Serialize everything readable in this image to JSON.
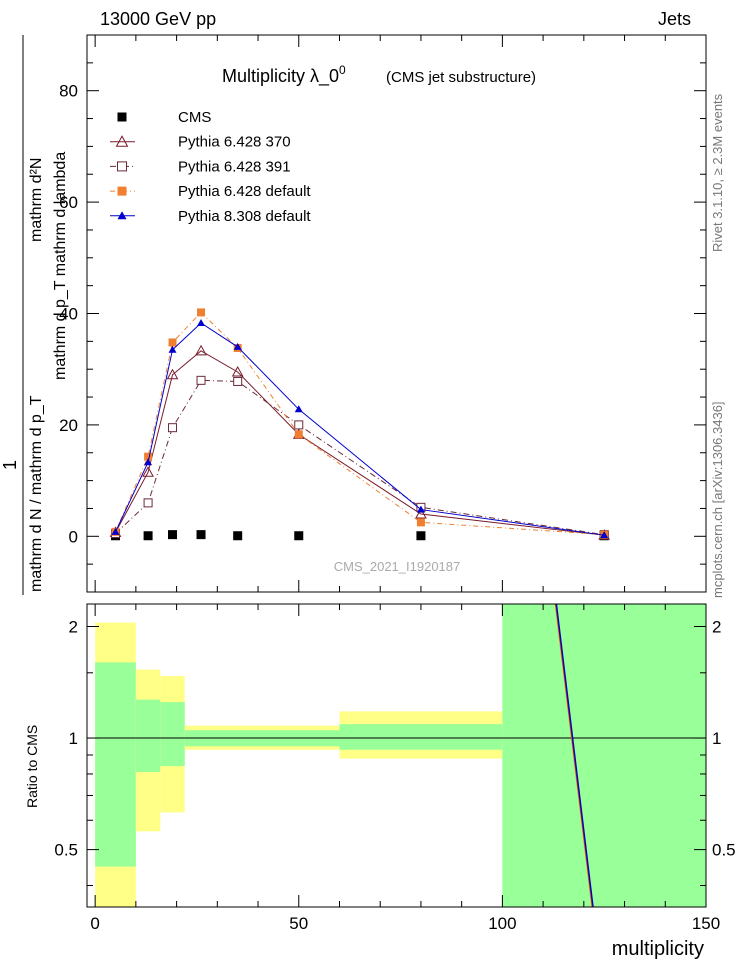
{
  "header": {
    "energy": "13000 GeV pp",
    "category": "Jets"
  },
  "chart_data": {
    "type": "line",
    "title": "Multiplicity  λ_0",
    "title_sup": "0",
    "subtitle": "(CMS jet substructure)",
    "ylabel_top": "1",
    "ylabel_bottom_num": "mathrm d²N",
    "ylabel_bottom_den": "mathrm d p_T mathrm d lambda",
    "ylabel_full": "mathrm d N / mathrm d p_T",
    "ylabel_ratio": "Ratio to CMS",
    "xlabel": "multiplicity",
    "watermark": "CMS_2021_I1920187",
    "side_text": "Rivet 3.1.10, ≥ 2.3M events",
    "side_text2": "mcplots.cern.ch [arXiv:1306.3436]",
    "xlim": [
      -2,
      150
    ],
    "ylim_main": [
      -10,
      90
    ],
    "ylim_ratio": [
      0.35,
      2.3
    ],
    "x_ticks": [
      "0",
      "50",
      "100",
      "150"
    ],
    "y_ticks_main": [
      "0",
      "20",
      "40",
      "60",
      "80"
    ],
    "y_ticks_ratio": [
      "0.5",
      "1",
      "2"
    ],
    "x": [
      5,
      13,
      19,
      26,
      35,
      50,
      80,
      125
    ],
    "series": [
      {
        "name": "CMS",
        "color": "#000000",
        "marker": "square-filled",
        "values": [
          0.1,
          0.1,
          0.3,
          0.3,
          0.1,
          0.1,
          0.1,
          0.1
        ]
      },
      {
        "name": "Pythia 6.428 370",
        "color": "#7a1a2a",
        "marker": "triangle-open",
        "values": [
          0.7,
          11.5,
          29,
          33.3,
          29.5,
          18.3,
          4,
          0.2
        ]
      },
      {
        "name": "Pythia 6.428 391",
        "color": "#6b2a3a",
        "marker": "square-open",
        "values": [
          0.5,
          6,
          19.5,
          28,
          27.8,
          20,
          5.2,
          0.3
        ]
      },
      {
        "name": "Pythia 6.428 default",
        "color": "#f08030",
        "marker": "square-filled",
        "values": [
          0.8,
          14.3,
          34.8,
          40.2,
          33.8,
          18.3,
          2.5,
          0.3
        ]
      },
      {
        "name": "Pythia 8.308 default",
        "color": "#0000cc",
        "marker": "triangle-filled",
        "values": [
          0.8,
          13.3,
          33.5,
          38.3,
          34,
          22.8,
          4.8,
          0.2
        ]
      }
    ],
    "ratio_bands": [
      {
        "x0": 0,
        "x1": 10,
        "yellow": [
          0.35,
          2.05
        ],
        "green": [
          0.45,
          1.6
        ]
      },
      {
        "x0": 10,
        "x1": 16,
        "yellow": [
          0.56,
          1.53
        ],
        "green": [
          0.81,
          1.27
        ]
      },
      {
        "x0": 16,
        "x1": 22,
        "yellow": [
          0.63,
          1.47
        ],
        "green": [
          0.84,
          1.25
        ]
      },
      {
        "x0": 22,
        "x1": 60,
        "yellow": [
          0.93,
          1.08
        ],
        "green": [
          0.95,
          1.05
        ]
      },
      {
        "x0": 60,
        "x1": 100,
        "yellow": [
          0.88,
          1.18
        ],
        "green": [
          0.93,
          1.09
        ]
      },
      {
        "x0": 100,
        "x1": 150,
        "yellow": [
          0.35,
          2.3
        ],
        "green": [
          0.35,
          2.3
        ]
      }
    ],
    "ratio_line": {
      "x": [
        113,
        122
      ],
      "y": [
        2.3,
        0.35
      ]
    },
    "legend_position": "top-left",
    "grid": false
  }
}
